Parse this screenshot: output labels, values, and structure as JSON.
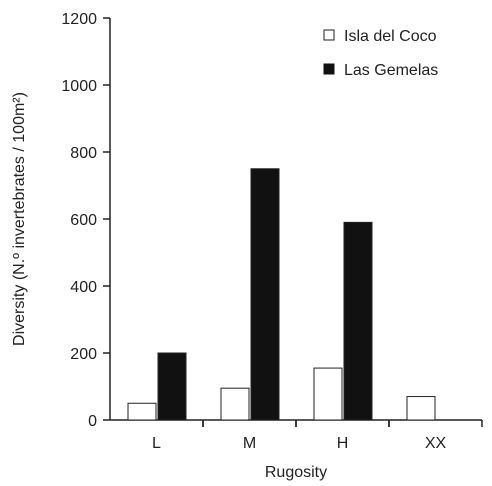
{
  "chart_data": {
    "type": "bar",
    "categories": [
      "L",
      "M",
      "H",
      "XX"
    ],
    "series": [
      {
        "name": "Isla del Coco",
        "values": [
          50,
          95,
          155,
          70
        ],
        "color": "#ffffff"
      },
      {
        "name": "Las Gemelas",
        "values": [
          200,
          750,
          590,
          null
        ],
        "color": "#111111"
      }
    ],
    "xlabel": "Rugosity",
    "ylabel": "Diversity (N.º invertebrates / 100m²)",
    "ylim": [
      0,
      1200
    ],
    "yticks": [
      0,
      200,
      400,
      600,
      800,
      1000,
      1200
    ],
    "grid": false,
    "legend": "top-right"
  }
}
